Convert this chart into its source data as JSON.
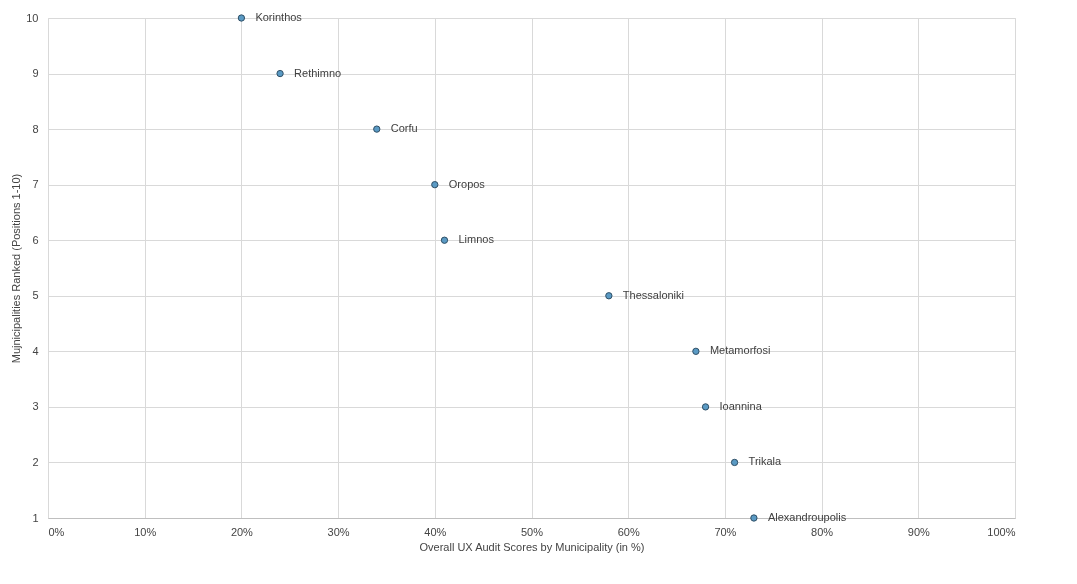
{
  "chart_data": {
    "type": "scatter",
    "xlabel": "Overall UX Audit Scores by Municipality (in %)",
    "ylabel": "Mujnicipalities Ranked (Positions 1-10)",
    "x": [
      20,
      24,
      34,
      40,
      41,
      58,
      67,
      68,
      71,
      73
    ],
    "series": [
      {
        "color": "#5a9ac4",
        "values": [
          10,
          9,
          8,
          7,
          6,
          5,
          4,
          3,
          2,
          1
        ]
      }
    ],
    "xlim": [
      0,
      100
    ],
    "ylim": [
      1,
      10
    ],
    "xticks": [
      {
        "value": 0,
        "label": "0%"
      },
      {
        "value": 10,
        "label": "10%"
      },
      {
        "value": 20,
        "label": "20%"
      },
      {
        "value": 30,
        "label": "30%"
      },
      {
        "value": 40,
        "label": "40%"
      },
      {
        "value": 50,
        "label": "50%"
      },
      {
        "value": 60,
        "label": "60%"
      },
      {
        "value": 70,
        "label": "70%"
      },
      {
        "value": 80,
        "label": "80%"
      },
      {
        "value": 90,
        "label": "90%"
      },
      {
        "value": 100,
        "label": "100%"
      }
    ],
    "yticks": [
      1,
      2,
      3,
      4,
      5,
      6,
      7,
      8,
      9,
      10
    ],
    "annotations": [
      {
        "text": "Korinthos",
        "x": 20,
        "y": 10
      },
      {
        "text": "Rethimno",
        "x": 24,
        "y": 9
      },
      {
        "text": "Corfu",
        "x": 34,
        "y": 8
      },
      {
        "text": "Oropos",
        "x": 40,
        "y": 7
      },
      {
        "text": "Limnos",
        "x": 41,
        "y": 6
      },
      {
        "text": "Thessaloniki",
        "x": 58,
        "y": 5
      },
      {
        "text": "Metamorfosi",
        "x": 67,
        "y": 4
      },
      {
        "text": "Ioannina",
        "x": 68,
        "y": 3
      },
      {
        "text": "Trikala",
        "x": 71,
        "y": 2
      },
      {
        "text": "Alexandroupolis",
        "x": 73,
        "y": 1
      }
    ],
    "grid": true,
    "marker": "circle"
  }
}
